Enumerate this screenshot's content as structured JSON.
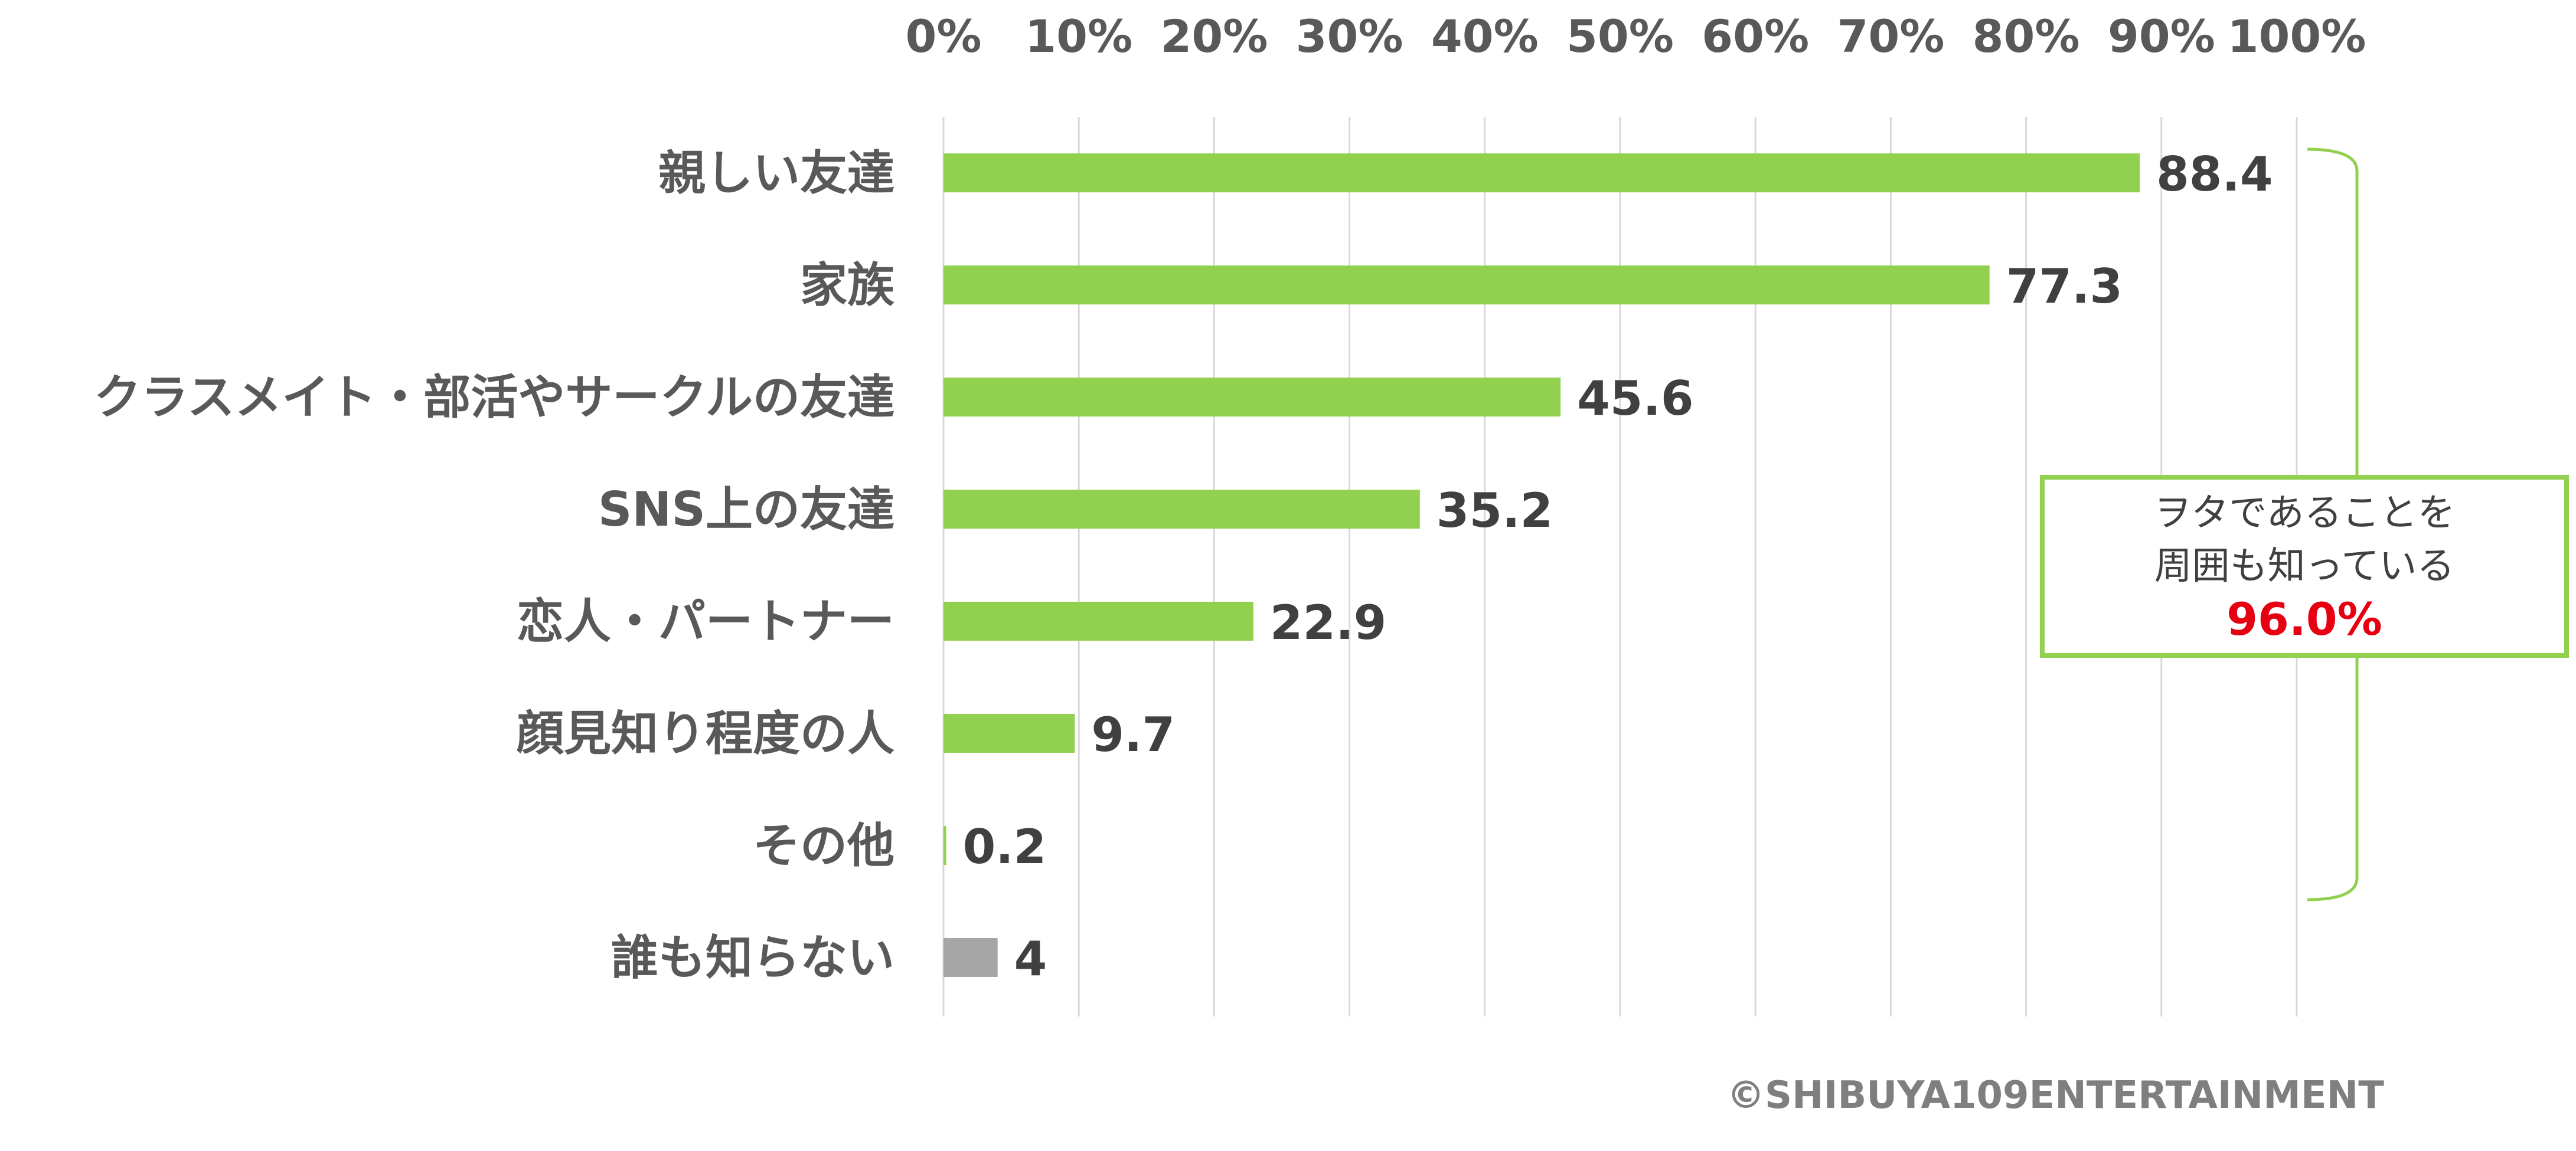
{
  "chart_data": {
    "type": "bar",
    "orientation": "horizontal",
    "categories": [
      "親しい友達",
      "家族",
      "クラスメイト・部活やサークルの友達",
      "SNS上の友達",
      "恋人・パートナー",
      "顔見知り程度の人",
      "その他",
      "誰も知らない"
    ],
    "values": [
      88.4,
      77.3,
      45.6,
      35.2,
      22.9,
      9.7,
      0.2,
      4
    ],
    "value_labels": [
      "88.4",
      "77.3",
      "45.6",
      "35.2",
      "22.9",
      "9.7",
      "0.2",
      "4"
    ],
    "bar_colors": [
      "#92d050",
      "#92d050",
      "#92d050",
      "#92d050",
      "#92d050",
      "#92d050",
      "#92d050",
      "#a6a6a6"
    ],
    "xlim": [
      0,
      100
    ],
    "x_ticks": [
      0,
      10,
      20,
      30,
      40,
      50,
      60,
      70,
      80,
      90,
      100
    ],
    "x_tick_labels": [
      "0%",
      "10%",
      "20%",
      "30%",
      "40%",
      "50%",
      "60%",
      "70%",
      "80%",
      "90%",
      "100%"
    ],
    "x_axis_position": "top",
    "grid": true,
    "gridline_color": "#d9d9d9",
    "bracket_color": "#92d050"
  },
  "callout": {
    "line1": "ヲタであることを",
    "line2": "周囲も知っている",
    "percentage": "96.0%",
    "border_color": "#92d050",
    "percentage_color": "#e60012"
  },
  "copyright": "©SHIBUYA109ENTERTAINMENT"
}
